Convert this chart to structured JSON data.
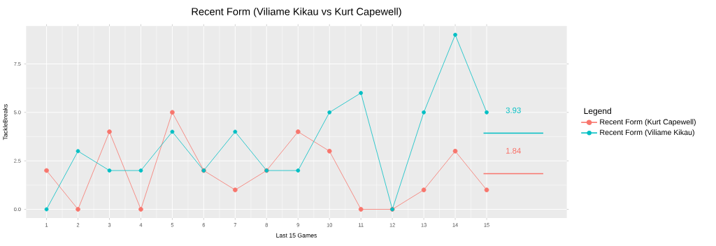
{
  "chart_data": {
    "type": "line",
    "title": "Recent Form (Viliame Kikau vs Kurt Capewell)",
    "xlabel": "Last 15 Games",
    "ylabel": "TackleBreaks",
    "legend_title": "Legend",
    "x": [
      1,
      2,
      3,
      4,
      5,
      6,
      7,
      8,
      9,
      10,
      11,
      12,
      13,
      14,
      15
    ],
    "series": [
      {
        "name": "Recent Form (Kurt Capewell)",
        "color": "#f8766d",
        "values": [
          2,
          0,
          4,
          0,
          5,
          2,
          1,
          2,
          4,
          3,
          0,
          0,
          1,
          3,
          1
        ]
      },
      {
        "name": "Recent Form (Viliame Kikau)",
        "color": "#00bfc4",
        "values": [
          0,
          3,
          2,
          2,
          4,
          2,
          4,
          2,
          2,
          5,
          6,
          0,
          5,
          9,
          5
        ]
      },
      {
        "color": "#00bfc4",
        "x": [
          14.9,
          15.85,
          16.8
        ],
        "values": [
          3.93,
          3.93,
          3.93
        ],
        "value_labels": [
          null,
          "3.93",
          null
        ],
        "marker": "none"
      },
      {
        "color": "#f8766d",
        "x": [
          14.9,
          15.85,
          16.8
        ],
        "values": [
          1.84,
          1.84,
          1.84
        ],
        "value_labels": [
          null,
          "1.84",
          null
        ],
        "marker": "none"
      }
    ],
    "xlim": [
      0.35,
      17.55
    ],
    "ylim": [
      -0.45,
      9.45
    ],
    "xticks": [
      1,
      2,
      3,
      4,
      5,
      6,
      7,
      8,
      9,
      10,
      11,
      12,
      13,
      14,
      15
    ],
    "yticks": [
      {
        "value": 0,
        "label": "0.0"
      },
      {
        "value": 2.5,
        "label": "2.5"
      },
      {
        "value": 5,
        "label": "5.0"
      },
      {
        "value": 7.5,
        "label": "7.5"
      }
    ],
    "grid": true,
    "legend": "right",
    "marker": "circle",
    "line_style": "solid"
  }
}
